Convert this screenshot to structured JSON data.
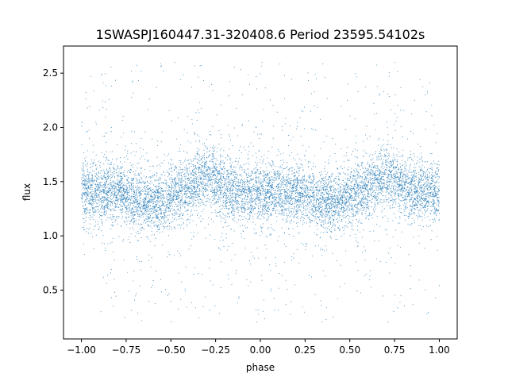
{
  "chart_data": {
    "type": "scatter",
    "title": "1SWASPJ160447.31-320408.6 Period 23595.54102s",
    "xlabel": "phase",
    "ylabel": "flux",
    "xlim": [
      -1.1,
      1.1
    ],
    "ylim": [
      0.05,
      2.75
    ],
    "x_ticks": [
      -1.0,
      -0.75,
      -0.5,
      -0.25,
      0.0,
      0.25,
      0.5,
      0.75,
      1.0
    ],
    "x_tick_labels": [
      "−1.00",
      "−0.75",
      "−0.50",
      "−0.25",
      "0.00",
      "0.25",
      "0.50",
      "0.75",
      "1.00"
    ],
    "y_ticks": [
      0.5,
      1.0,
      1.5,
      2.0,
      2.5
    ],
    "y_tick_labels": [
      "0.5",
      "1.0",
      "1.5",
      "2.0",
      "2.5"
    ],
    "grid": false,
    "marker_color": "#1f77b4",
    "series": [
      {
        "phase_range": [
          -1.0,
          1.0
        ],
        "baseline_flux": 1.4,
        "maxima_phase": [
          -0.3,
          0.7
        ],
        "maxima_flux": 1.55,
        "minima_phase": [
          -0.6,
          0.4
        ],
        "minima_flux": 1.3,
        "core_spread": 0.13,
        "outlier_range": [
          0.2,
          2.6
        ]
      }
    ]
  }
}
